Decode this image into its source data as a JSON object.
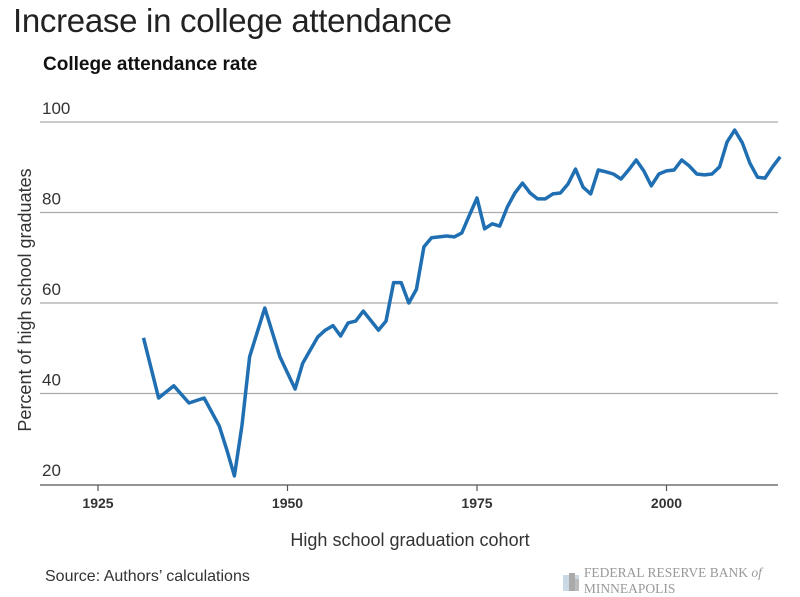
{
  "title": "Increase in college attendance",
  "subtitle": "College attendance rate",
  "source": "Source: Authors’ calculations",
  "logo": {
    "text_main": "FEDERAL RESERVE BANK",
    "text_of": "of",
    "text_end": "MINNEAPOLIS"
  },
  "chart_data": {
    "type": "line",
    "title": "College attendance rate",
    "xlabel": "High school graduation cohort",
    "ylabel": "Percent of high school graduates",
    "xlim": [
      1915,
      2015
    ],
    "ylim": [
      20,
      100
    ],
    "xticks": [
      1925,
      1950,
      1975,
      2000
    ],
    "yticks": [
      20,
      40,
      60,
      80,
      100
    ],
    "grid": "horizontal",
    "color": "#1f6fb2",
    "x": [
      1931,
      1933,
      1935,
      1937,
      1939,
      1941,
      1942,
      1943,
      1944,
      1945,
      1947,
      1949,
      1951,
      1952,
      1954,
      1955,
      1956,
      1957,
      1958,
      1959,
      1960,
      1962,
      1963,
      1964,
      1965,
      1966,
      1967,
      1968,
      1969,
      1970,
      1971,
      1972,
      1973,
      1974,
      1975,
      1976,
      1977,
      1978,
      1979,
      1980,
      1981,
      1982,
      1983,
      1984,
      1985,
      1986,
      1987,
      1988,
      1989,
      1990,
      1991,
      1992,
      1993,
      1994,
      1995,
      1996,
      1997,
      1998,
      1999,
      2000,
      2001,
      2002,
      2003,
      2004,
      2005,
      2006,
      2007,
      2008,
      2009,
      2010,
      2011,
      2012,
      2013,
      2014,
      2015
    ],
    "y": [
      52.3,
      39.0,
      41.7,
      37.9,
      39.0,
      32.8,
      27.5,
      21.8,
      33.0,
      48.1,
      58.9,
      48.1,
      41.0,
      46.7,
      52.5,
      54.0,
      55.0,
      52.7,
      55.6,
      56.0,
      58.2,
      54.0,
      56.0,
      64.5,
      64.5,
      60.0,
      63.0,
      72.4,
      74.4,
      74.6,
      74.8,
      74.6,
      75.5,
      79.4,
      83.2,
      76.4,
      77.5,
      77.0,
      81.2,
      84.3,
      86.5,
      84.3,
      83.0,
      83.0,
      84.1,
      84.3,
      86.3,
      89.6,
      85.6,
      84.1,
      89.4,
      89.0,
      88.5,
      87.4,
      89.4,
      91.6,
      89.2,
      85.9,
      88.5,
      89.2,
      89.4,
      91.6,
      90.3,
      88.5,
      88.3,
      88.5,
      90.1,
      95.6,
      98.2,
      95.4,
      90.9,
      87.8,
      87.6,
      90.1,
      92.3
    ]
  }
}
